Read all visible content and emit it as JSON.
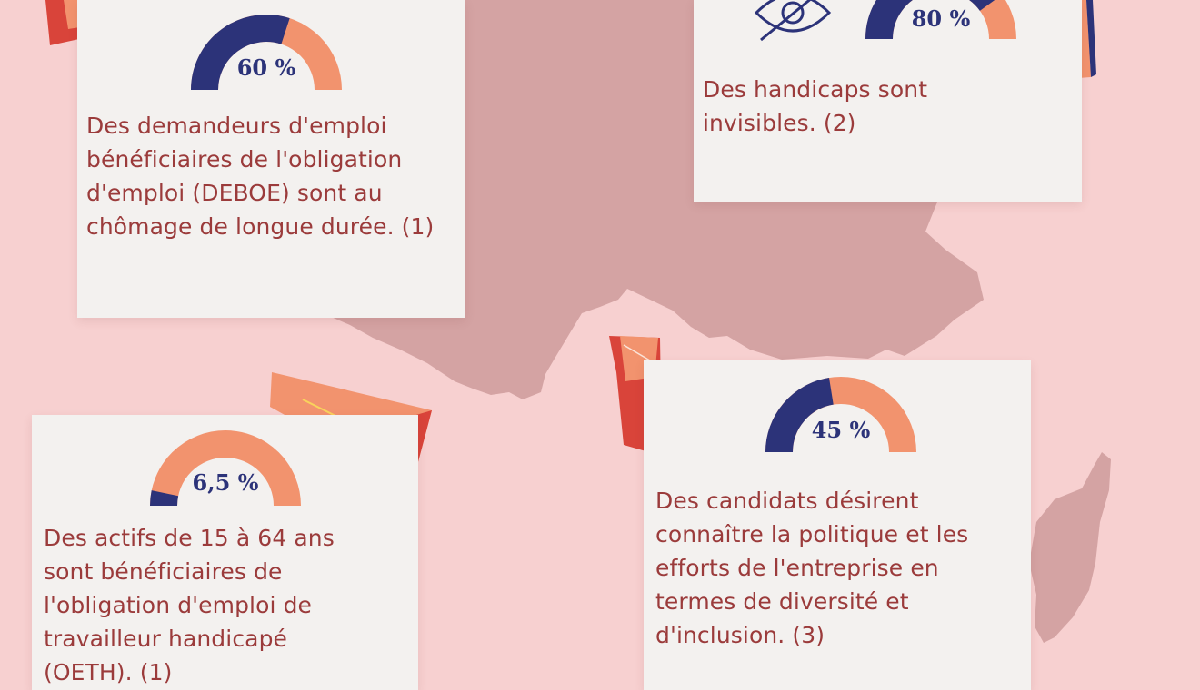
{
  "colors": {
    "background": "#f7d0d0",
    "map": "#d4a3a3",
    "card": "#f3f1ef",
    "text": "#9b3b3b",
    "gauge_fill": "#2c3379",
    "gauge_rest": "#f2936e",
    "accent_red": "#d9443a"
  },
  "stats": [
    {
      "id": "deboe",
      "value": 60,
      "label": "60 %",
      "lines": [
        "Des demandeurs d'emploi",
        "bénéficiaires de l'obligation",
        "d'emploi (DEBOE) sont au",
        "chômage de longue durée. (1)"
      ]
    },
    {
      "id": "invisible",
      "value": 80,
      "label": "80 %",
      "lines": [
        "Des handicaps sont",
        "invisibles. (2)"
      ]
    },
    {
      "id": "oeth",
      "value": 6.5,
      "label": "6,5 %",
      "lines": [
        "Des actifs de 15 à 64 ans",
        "sont bénéficiaires de",
        "l'obligation d'emploi de",
        "travailleur handicapé",
        "(OETH). (1)"
      ]
    },
    {
      "id": "diversite",
      "value": 45,
      "label": "45 %",
      "lines": [
        "Des candidats désirent",
        "connaître la politique et les",
        "efforts de l'entreprise en",
        "termes de diversité et",
        "d'inclusion. (3)"
      ]
    }
  ],
  "icons": {
    "invisible": "eye-slash-icon"
  }
}
